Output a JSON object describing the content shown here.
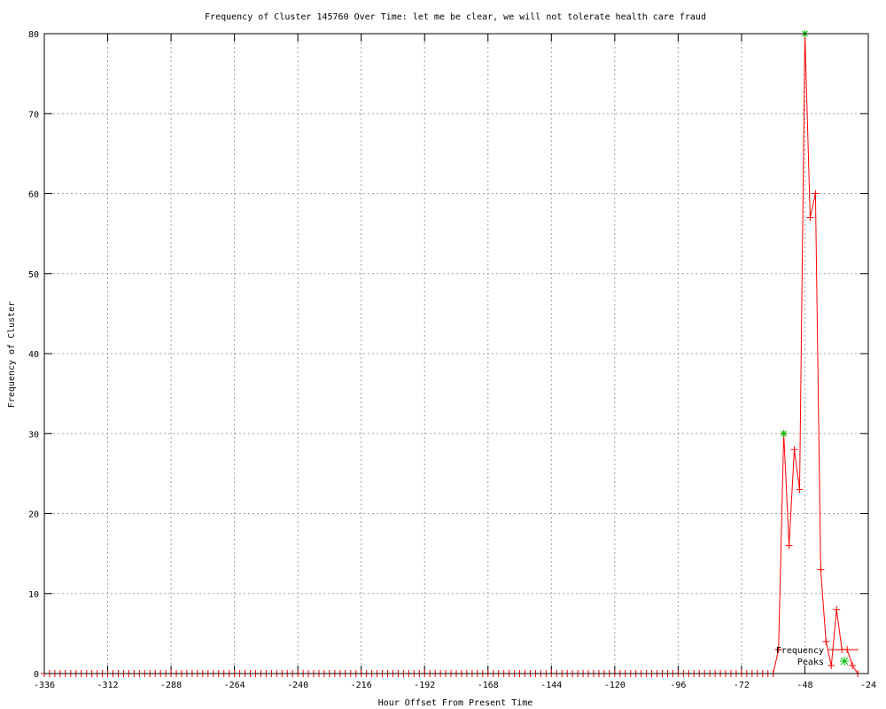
{
  "chart_data": {
    "type": "line",
    "title": "Frequency of Cluster 145760 Over Time: let me be clear, we will not tolerate health care fraud",
    "xlabel": "Hour Offset From Present Time",
    "ylabel": "Frequency of Cluster",
    "xlim": [
      -336,
      -24
    ],
    "ylim": [
      0,
      80
    ],
    "xticks": [
      -336,
      -312,
      -288,
      -264,
      -240,
      -216,
      -192,
      -168,
      -144,
      -120,
      -96,
      -72,
      -48,
      -24
    ],
    "yticks": [
      0,
      10,
      20,
      30,
      40,
      50,
      60,
      70,
      80
    ],
    "grid": true,
    "legend_position": "bottom-right",
    "series": [
      {
        "name": "Frequency",
        "color": "#ff0000",
        "marker": "plus",
        "x": [
          -336,
          -334,
          -332,
          -330,
          -328,
          -326,
          -324,
          -322,
          -320,
          -318,
          -316,
          -314,
          -312,
          -310,
          -308,
          -306,
          -304,
          -302,
          -300,
          -298,
          -296,
          -294,
          -292,
          -290,
          -288,
          -286,
          -284,
          -282,
          -280,
          -278,
          -276,
          -274,
          -272,
          -270,
          -268,
          -266,
          -264,
          -262,
          -260,
          -258,
          -256,
          -254,
          -252,
          -250,
          -248,
          -246,
          -244,
          -242,
          -240,
          -238,
          -236,
          -234,
          -232,
          -230,
          -228,
          -226,
          -224,
          -222,
          -220,
          -218,
          -216,
          -214,
          -212,
          -210,
          -208,
          -206,
          -204,
          -202,
          -200,
          -198,
          -196,
          -194,
          -192,
          -190,
          -188,
          -186,
          -184,
          -182,
          -180,
          -178,
          -176,
          -174,
          -172,
          -170,
          -168,
          -166,
          -164,
          -162,
          -160,
          -158,
          -156,
          -154,
          -152,
          -150,
          -148,
          -146,
          -144,
          -142,
          -140,
          -138,
          -136,
          -134,
          -132,
          -130,
          -128,
          -126,
          -124,
          -122,
          -120,
          -118,
          -116,
          -114,
          -112,
          -110,
          -108,
          -106,
          -104,
          -102,
          -100,
          -98,
          -96,
          -94,
          -92,
          -90,
          -88,
          -86,
          -84,
          -82,
          -80,
          -78,
          -76,
          -74,
          -72,
          -70,
          -68,
          -66,
          -64,
          -62,
          -60,
          -58,
          -56,
          -54,
          -52,
          -50,
          -48,
          -46,
          -44,
          -42,
          -40,
          -38,
          -36,
          -34,
          -32,
          -30,
          -28
        ],
        "y": [
          0,
          0,
          0,
          0,
          0,
          0,
          0,
          0,
          0,
          0,
          0,
          0,
          0,
          0,
          0,
          0,
          0,
          0,
          0,
          0,
          0,
          0,
          0,
          0,
          0,
          0,
          0,
          0,
          0,
          0,
          0,
          0,
          0,
          0,
          0,
          0,
          0,
          0,
          0,
          0,
          0,
          0,
          0,
          0,
          0,
          0,
          0,
          0,
          0,
          0,
          0,
          0,
          0,
          0,
          0,
          0,
          0,
          0,
          0,
          0,
          0,
          0,
          0,
          0,
          0,
          0,
          0,
          0,
          0,
          0,
          0,
          0,
          0,
          0,
          0,
          0,
          0,
          0,
          0,
          0,
          0,
          0,
          0,
          0,
          0,
          0,
          0,
          0,
          0,
          0,
          0,
          0,
          0,
          0,
          0,
          0,
          0,
          0,
          0,
          0,
          0,
          0,
          0,
          0,
          0,
          0,
          0,
          0,
          0,
          0,
          0,
          0,
          0,
          0,
          0,
          0,
          0,
          0,
          0,
          0,
          0,
          0,
          0,
          0,
          0,
          0,
          0,
          0,
          0,
          0,
          0,
          0,
          0,
          0,
          0,
          0,
          0,
          0,
          0,
          3,
          30,
          16,
          28,
          23,
          80,
          57,
          60,
          13,
          4,
          1,
          8,
          3,
          3,
          1,
          0
        ]
      },
      {
        "name": "Peaks",
        "color": "#00c000",
        "marker": "star",
        "x": [
          -56,
          -48
        ],
        "y": [
          30,
          80
        ]
      }
    ]
  }
}
